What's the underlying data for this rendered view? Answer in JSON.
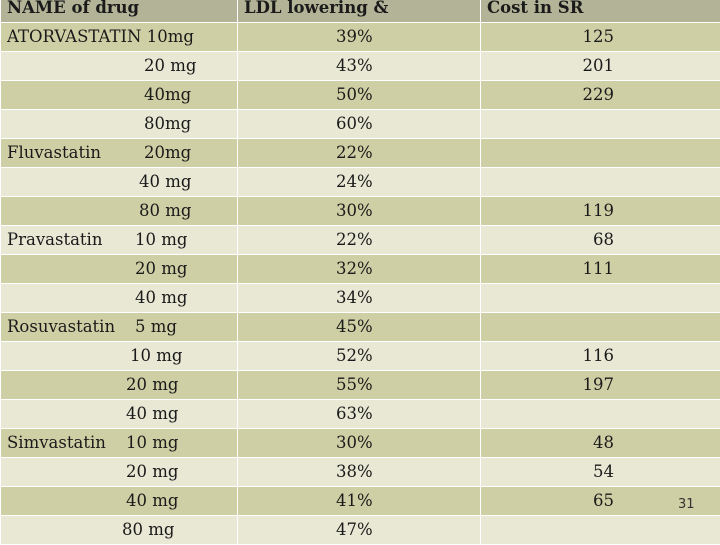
{
  "headers": [
    "NAME of drug",
    "LDL lowering &",
    "Cost in SR"
  ],
  "rows": [
    {
      "drug": "ATORVASTATIN 10mg",
      "dose": "",
      "ldl": "39%",
      "cost": "125"
    },
    {
      "drug": "",
      "dose": "20 mg",
      "ldl": "43%",
      "cost": "201"
    },
    {
      "drug": "",
      "dose": "40mg",
      "ldl": "50%",
      "cost": "229"
    },
    {
      "drug": "",
      "dose": "80mg",
      "ldl": "60%",
      "cost": ""
    },
    {
      "drug": "Fluvastatin",
      "dose": "20mg",
      "ldl": "22%",
      "cost": ""
    },
    {
      "drug": "",
      "dose": "40 mg",
      "ldl": "24%",
      "cost": ""
    },
    {
      "drug": "",
      "dose": "80 mg",
      "ldl": "30%",
      "cost": "119"
    },
    {
      "drug": "Pravastatin",
      "dose": "10 mg",
      "ldl": "22%",
      "cost": "68"
    },
    {
      "drug": "",
      "dose": "20 mg",
      "ldl": "32%",
      "cost": "111"
    },
    {
      "drug": "",
      "dose": "40 mg",
      "ldl": "34%",
      "cost": ""
    },
    {
      "drug": "Rosuvastatin",
      "dose": "5 mg",
      "ldl": "45%",
      "cost": ""
    },
    {
      "drug": "",
      "dose": "10 mg",
      "ldl": "52%",
      "cost": "116"
    },
    {
      "drug": "",
      "dose": "20 mg",
      "ldl": "55%",
      "cost": "197"
    },
    {
      "drug": "",
      "dose": "40 mg",
      "ldl": "63%",
      "cost": ""
    },
    {
      "drug": "Simvastatin",
      "dose": "10 mg",
      "ldl": "30%",
      "cost": "48"
    },
    {
      "drug": "",
      "dose": "20 mg",
      "ldl": "38%",
      "cost": "54"
    },
    {
      "drug": "",
      "dose": "40 mg",
      "ldl": "41%",
      "cost": "65"
    },
    {
      "drug": "",
      "dose": "80 mg",
      "ldl": "47%",
      "cost": ""
    }
  ],
  "page_number": "31"
}
